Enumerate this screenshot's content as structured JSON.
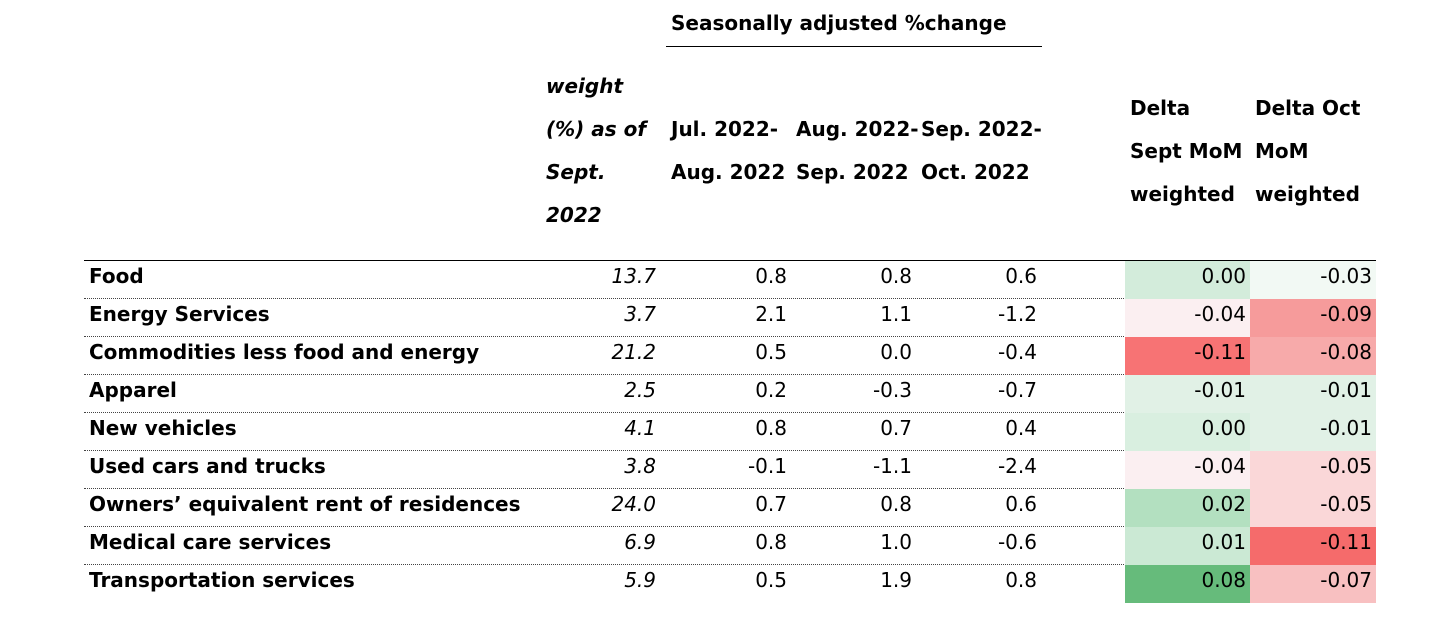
{
  "chart_data": {
    "type": "table",
    "super_header": "Seasonally adjusted %change",
    "columns": {
      "weight": [
        "weight",
        "(%) as of",
        "Sept.",
        "2022"
      ],
      "col1": [
        "Jul. 2022-",
        "Aug. 2022"
      ],
      "col2": [
        "Aug. 2022-",
        "Sep. 2022"
      ],
      "col3": [
        "Sep. 2022-",
        "Oct. 2022"
      ],
      "delta_sept": [
        "Delta",
        "Sept MoM",
        "weighted"
      ],
      "delta_oct": [
        "Delta Oct",
        "MoM",
        "weighted"
      ]
    },
    "rows": [
      {
        "label": "Food",
        "weight": "13.7",
        "jul_aug": "0.8",
        "aug_sep": "0.8",
        "sep_oct": "0.6",
        "delta_sept": "0.00",
        "delta_oct": "-0.03"
      },
      {
        "label": "Energy Services",
        "weight": "3.7",
        "jul_aug": "2.1",
        "aug_sep": "1.1",
        "sep_oct": "-1.2",
        "delta_sept": "-0.04",
        "delta_oct": "-0.09"
      },
      {
        "label": "Commodities less food and energy",
        "weight": "21.2",
        "jul_aug": "0.5",
        "aug_sep": "0.0",
        "sep_oct": "-0.4",
        "delta_sept": "-0.11",
        "delta_oct": "-0.08"
      },
      {
        "label": "Apparel",
        "weight": "2.5",
        "jul_aug": "0.2",
        "aug_sep": "-0.3",
        "sep_oct": "-0.7",
        "delta_sept": "-0.01",
        "delta_oct": "-0.01"
      },
      {
        "label": "New vehicles",
        "weight": "4.1",
        "jul_aug": "0.8",
        "aug_sep": "0.7",
        "sep_oct": "0.4",
        "delta_sept": "0.00",
        "delta_oct": "-0.01"
      },
      {
        "label": "Used cars and trucks",
        "weight": "3.8",
        "jul_aug": "-0.1",
        "aug_sep": "-1.1",
        "sep_oct": "-2.4",
        "delta_sept": "-0.04",
        "delta_oct": "-0.05"
      },
      {
        "label": "Owners’ equivalent rent of residences",
        "weight": "24.0",
        "jul_aug": "0.7",
        "aug_sep": "0.8",
        "sep_oct": "0.6",
        "delta_sept": "0.02",
        "delta_oct": "-0.05"
      },
      {
        "label": "Medical care services",
        "weight": "6.9",
        "jul_aug": "0.8",
        "aug_sep": "1.0",
        "sep_oct": "-0.6",
        "delta_sept": "0.01",
        "delta_oct": "-0.11"
      },
      {
        "label": "Transportation services",
        "weight": "5.9",
        "jul_aug": "0.5",
        "aug_sep": "1.9",
        "sep_oct": "0.8",
        "delta_sept": "0.08",
        "delta_oct": "-0.07"
      }
    ],
    "delta_sept_colors": [
      "#d3ecdb",
      "#fbeff1",
      "#f77374",
      "#e1f1e6",
      "#d9efe0",
      "#fbeff1",
      "#b3e0c0",
      "#cbe9d4",
      "#66bb7b"
    ],
    "delta_oct_colors": [
      "#f2f9f4",
      "#f69b9b",
      "#f7aaaa",
      "#e1f1e6",
      "#e1f1e6",
      "#fad7d8",
      "#fad7d8",
      "#f56b6b",
      "#f8c0c1"
    ]
  }
}
